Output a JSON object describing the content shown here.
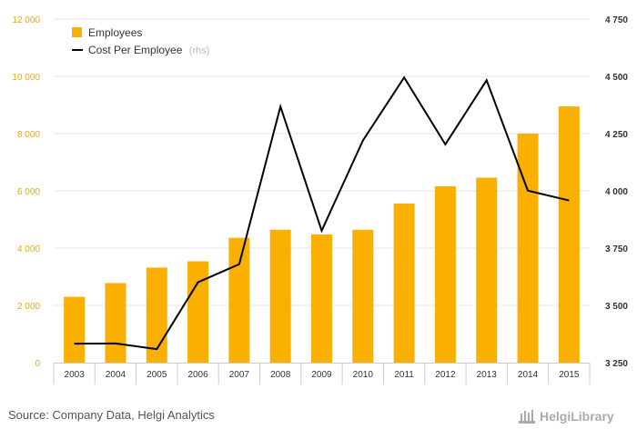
{
  "chart_data": {
    "type": "bar+line",
    "categories": [
      "2003",
      "2004",
      "2005",
      "2006",
      "2007",
      "2008",
      "2009",
      "2010",
      "2011",
      "2012",
      "2013",
      "2014",
      "2015"
    ],
    "series": [
      {
        "name": "Employees",
        "type": "bar",
        "axis": "left",
        "color": "#f9b000",
        "values": [
          2300,
          2780,
          3320,
          3540,
          4360,
          4640,
          4480,
          4640,
          5560,
          6160,
          6460,
          8000,
          8950
        ]
      },
      {
        "name": "Cost Per Employee",
        "name_note": "(rhs)",
        "type": "line",
        "axis": "right",
        "color": "#000000",
        "values": [
          3333,
          3334,
          3309,
          3601,
          3680,
          4368,
          3826,
          4220,
          4495,
          4203,
          4483,
          4001,
          3958
        ]
      }
    ],
    "left_axis": {
      "ylim": [
        0,
        12000
      ],
      "ticks": [
        0,
        2000,
        4000,
        6000,
        8000,
        10000,
        12000
      ],
      "tick_labels": [
        "0",
        "2 000",
        "4 000",
        "6 000",
        "8 000",
        "10 000",
        "12 000"
      ],
      "color": "#f2a900"
    },
    "right_axis": {
      "ylim": [
        3250,
        4750
      ],
      "ticks": [
        3250,
        3500,
        3750,
        4000,
        4250,
        4500,
        4750
      ],
      "tick_labels": [
        "3 250",
        "3 500",
        "3 750",
        "4 000",
        "4 250",
        "4 500",
        "4 750"
      ]
    },
    "legend_placement": "top-left",
    "grid": "horizontal"
  },
  "footer": {
    "source": "Source: Company Data, Helgi Analytics",
    "logo_text": "HelgiLibrary"
  },
  "colors": {
    "bar": "#f9b000",
    "line": "#000000",
    "grid": "#e6e6e6"
  }
}
